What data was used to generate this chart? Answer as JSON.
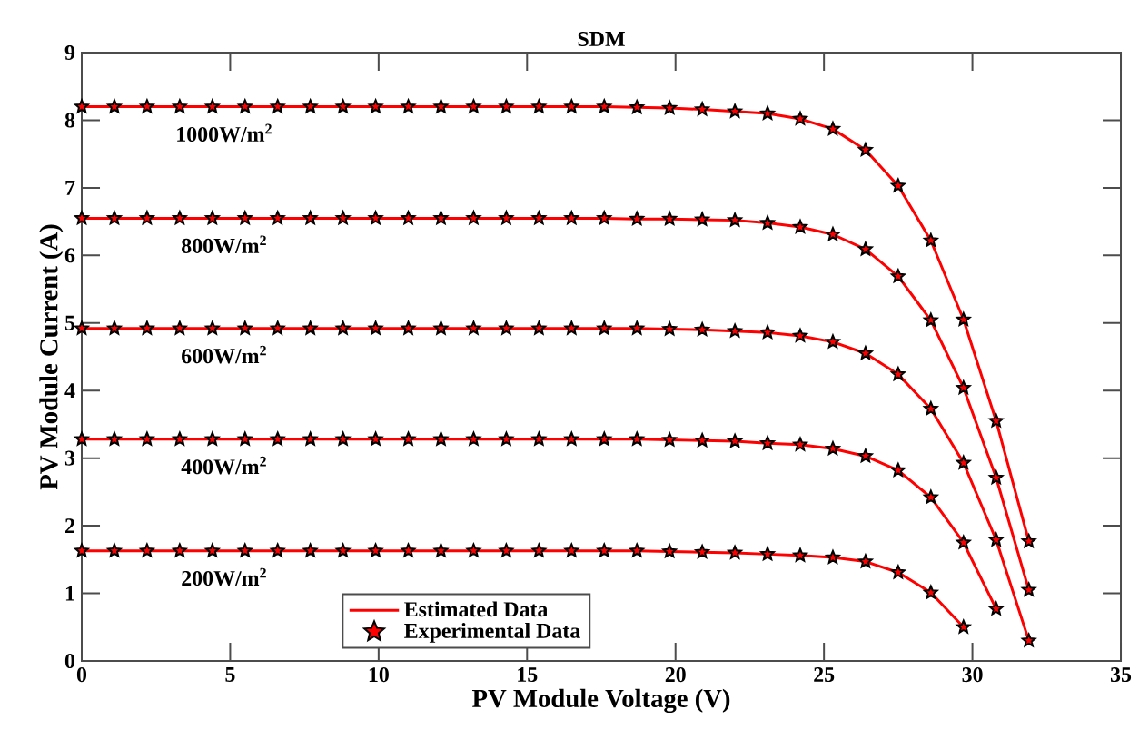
{
  "chart_data": {
    "type": "line",
    "title": "SDM",
    "xlabel": "PV Module Voltage (V)",
    "ylabel": "PV Module Current (A)",
    "xlim": [
      0,
      35
    ],
    "xticks": [
      0,
      5,
      10,
      15,
      20,
      25,
      30,
      35
    ],
    "ylim": [
      0,
      9
    ],
    "yticks": [
      0,
      1,
      2,
      3,
      4,
      5,
      6,
      7,
      8,
      9
    ],
    "grid": false,
    "legend": "bottom",
    "annotations": [
      "1000W/m$^{2}$",
      "800W/m$^{2}$",
      "600W/m$^{2}$",
      "400W/m$^{2}$",
      "200W/m$^{2}$"
    ],
    "series": [
      {
        "name": "Estimated Data",
        "color": "#ff0000",
        "x": [
          0,
          1.1,
          2.2,
          3.3,
          4.4,
          5.5,
          6.6,
          7.7,
          8.8,
          9.9,
          11,
          12.1,
          13.2,
          14.3,
          15.4,
          16.5,
          17.6,
          18.7,
          19.8,
          20.9,
          22,
          23.1,
          24.2,
          25.3,
          26.4,
          27.5,
          28.6,
          29.7,
          30.8,
          31.9
        ],
        "values": [
          8.2,
          8.2,
          8.2,
          8.2,
          8.2,
          8.2,
          8.2,
          8.2,
          8.2,
          8.2,
          8.2,
          8.2,
          8.2,
          8.2,
          8.2,
          8.2,
          8.2,
          8.19,
          8.18,
          8.16,
          8.13,
          8.1,
          8.02,
          7.87,
          7.56,
          7.03,
          6.22,
          5.05,
          3.55,
          1.77
        ]
      },
      {
        "color": "#ff0000",
        "x": [
          0,
          1.1,
          2.2,
          3.3,
          4.4,
          5.5,
          6.6,
          7.7,
          8.8,
          9.9,
          11,
          12.1,
          13.2,
          14.3,
          15.4,
          16.5,
          17.6,
          18.7,
          19.8,
          20.9,
          22,
          23.1,
          24.2,
          25.3,
          26.4,
          27.5,
          28.6,
          29.7,
          30.8,
          31.9
        ],
        "values": [
          6.55,
          6.55,
          6.55,
          6.55,
          6.55,
          6.55,
          6.55,
          6.55,
          6.55,
          6.55,
          6.55,
          6.55,
          6.55,
          6.55,
          6.55,
          6.55,
          6.55,
          6.54,
          6.54,
          6.53,
          6.52,
          6.48,
          6.42,
          6.31,
          6.09,
          5.69,
          5.04,
          4.04,
          2.71,
          1.05
        ]
      },
      {
        "color": "#ff0000",
        "x": [
          0,
          1.1,
          2.2,
          3.3,
          4.4,
          5.5,
          6.6,
          7.7,
          8.8,
          9.9,
          11,
          12.1,
          13.2,
          14.3,
          15.4,
          16.5,
          17.6,
          18.7,
          19.8,
          20.9,
          22,
          23.1,
          24.2,
          25.3,
          26.4,
          27.5,
          28.6,
          29.7,
          30.8,
          31.9
        ],
        "values": [
          4.92,
          4.92,
          4.92,
          4.92,
          4.92,
          4.92,
          4.92,
          4.92,
          4.92,
          4.92,
          4.92,
          4.92,
          4.92,
          4.92,
          4.92,
          4.92,
          4.92,
          4.92,
          4.91,
          4.9,
          4.88,
          4.86,
          4.81,
          4.72,
          4.55,
          4.24,
          3.73,
          2.93,
          1.79,
          0.3
        ]
      },
      {
        "color": "#ff0000",
        "x": [
          0,
          1.1,
          2.2,
          3.3,
          4.4,
          5.5,
          6.6,
          7.7,
          8.8,
          9.9,
          11,
          12.1,
          13.2,
          14.3,
          15.4,
          16.5,
          17.6,
          18.7,
          19.8,
          20.9,
          22,
          23.1,
          24.2,
          25.3,
          26.4,
          27.5,
          28.6,
          29.7,
          30.8
        ],
        "values": [
          3.28,
          3.28,
          3.28,
          3.28,
          3.28,
          3.28,
          3.28,
          3.28,
          3.28,
          3.28,
          3.28,
          3.28,
          3.28,
          3.28,
          3.28,
          3.28,
          3.28,
          3.28,
          3.27,
          3.26,
          3.25,
          3.22,
          3.2,
          3.14,
          3.03,
          2.82,
          2.42,
          1.75,
          0.77
        ]
      },
      {
        "color": "#ff0000",
        "x": [
          0,
          1.1,
          2.2,
          3.3,
          4.4,
          5.5,
          6.6,
          7.7,
          8.8,
          9.9,
          11,
          12.1,
          13.2,
          14.3,
          15.4,
          16.5,
          17.6,
          18.7,
          19.8,
          20.9,
          22,
          23.1,
          24.2,
          25.3,
          26.4,
          27.5,
          28.6,
          29.7
        ],
        "values": [
          1.63,
          1.63,
          1.63,
          1.63,
          1.63,
          1.63,
          1.63,
          1.63,
          1.63,
          1.63,
          1.63,
          1.63,
          1.63,
          1.63,
          1.63,
          1.63,
          1.63,
          1.63,
          1.62,
          1.61,
          1.6,
          1.58,
          1.56,
          1.53,
          1.47,
          1.31,
          1.01,
          0.5
        ]
      },
      {
        "name": "Experimental Data",
        "type": "scatter",
        "marker": "star",
        "color": "#000000",
        "x": [
          0,
          1.1,
          2.2,
          3.3,
          4.4,
          5.5,
          6.6,
          7.7,
          8.8,
          9.9,
          11,
          12.1,
          13.2,
          14.3,
          15.4,
          16.5,
          17.6,
          18.7,
          19.8,
          20.9,
          22,
          23.1,
          24.2,
          25.3,
          26.4,
          27.5,
          28.6,
          29.7,
          30.8,
          31.9
        ],
        "values": [
          8.2,
          8.2,
          8.2,
          8.2,
          8.2,
          8.2,
          8.2,
          8.2,
          8.2,
          8.2,
          8.2,
          8.2,
          8.2,
          8.2,
          8.2,
          8.2,
          8.2,
          8.19,
          8.18,
          8.16,
          8.13,
          8.1,
          8.02,
          7.87,
          7.56,
          7.03,
          6.22,
          5.05,
          3.55,
          1.77
        ]
      },
      {
        "type": "scatter",
        "marker": "star",
        "color": "#000000",
        "x": [
          0,
          1.1,
          2.2,
          3.3,
          4.4,
          5.5,
          6.6,
          7.7,
          8.8,
          9.9,
          11,
          12.1,
          13.2,
          14.3,
          15.4,
          16.5,
          17.6,
          18.7,
          19.8,
          20.9,
          22,
          23.1,
          24.2,
          25.3,
          26.4,
          27.5,
          28.6,
          29.7,
          30.8,
          31.9
        ],
        "values": [
          6.55,
          6.55,
          6.55,
          6.55,
          6.55,
          6.55,
          6.55,
          6.55,
          6.55,
          6.55,
          6.55,
          6.55,
          6.55,
          6.55,
          6.55,
          6.55,
          6.55,
          6.54,
          6.54,
          6.53,
          6.52,
          6.48,
          6.42,
          6.31,
          6.09,
          5.69,
          5.04,
          4.04,
          2.71,
          1.05
        ]
      },
      {
        "type": "scatter",
        "marker": "star",
        "color": "#000000",
        "x": [
          0,
          1.1,
          2.2,
          3.3,
          4.4,
          5.5,
          6.6,
          7.7,
          8.8,
          9.9,
          11,
          12.1,
          13.2,
          14.3,
          15.4,
          16.5,
          17.6,
          18.7,
          19.8,
          20.9,
          22,
          23.1,
          24.2,
          25.3,
          26.4,
          27.5,
          28.6,
          29.7,
          30.8,
          31.9
        ],
        "values": [
          4.92,
          4.92,
          4.92,
          4.92,
          4.92,
          4.92,
          4.92,
          4.92,
          4.92,
          4.92,
          4.92,
          4.92,
          4.92,
          4.92,
          4.92,
          4.92,
          4.92,
          4.92,
          4.91,
          4.9,
          4.88,
          4.86,
          4.81,
          4.72,
          4.55,
          4.24,
          3.73,
          2.93,
          1.79,
          0.3
        ]
      },
      {
        "type": "scatter",
        "marker": "star",
        "color": "#000000",
        "x": [
          0,
          1.1,
          2.2,
          3.3,
          4.4,
          5.5,
          6.6,
          7.7,
          8.8,
          9.9,
          11,
          12.1,
          13.2,
          14.3,
          15.4,
          16.5,
          17.6,
          18.7,
          19.8,
          20.9,
          22,
          23.1,
          24.2,
          25.3,
          26.4,
          27.5,
          28.6,
          29.7,
          30.8
        ],
        "values": [
          3.28,
          3.28,
          3.28,
          3.28,
          3.28,
          3.28,
          3.28,
          3.28,
          3.28,
          3.28,
          3.28,
          3.28,
          3.28,
          3.28,
          3.28,
          3.28,
          3.28,
          3.28,
          3.27,
          3.26,
          3.25,
          3.22,
          3.2,
          3.14,
          3.03,
          2.82,
          2.42,
          1.75,
          0.77
        ]
      },
      {
        "type": "scatter",
        "marker": "star",
        "color": "#000000",
        "x": [
          0,
          1.1,
          2.2,
          3.3,
          4.4,
          5.5,
          6.6,
          7.7,
          8.8,
          9.9,
          11,
          12.1,
          13.2,
          14.3,
          15.4,
          16.5,
          17.6,
          18.7,
          19.8,
          20.9,
          22,
          23.1,
          24.2,
          25.3,
          26.4,
          27.5,
          28.6,
          29.7
        ],
        "values": [
          1.63,
          1.63,
          1.63,
          1.63,
          1.63,
          1.63,
          1.63,
          1.63,
          1.63,
          1.63,
          1.63,
          1.63,
          1.63,
          1.63,
          1.63,
          1.63,
          1.63,
          1.63,
          1.62,
          1.61,
          1.6,
          1.58,
          1.56,
          1.53,
          1.47,
          1.31,
          1.01,
          0.5
        ]
      }
    ]
  }
}
